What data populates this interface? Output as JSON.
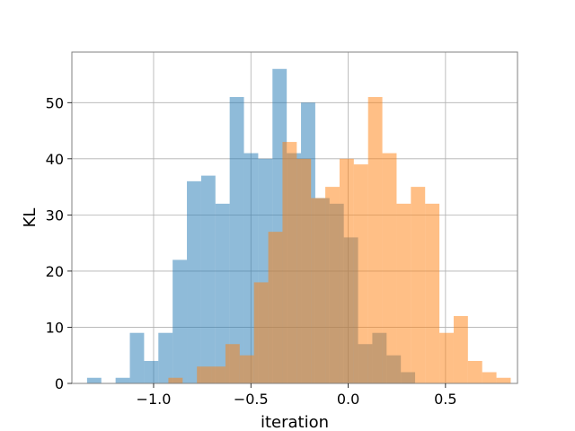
{
  "chart_data": {
    "type": "bar",
    "title": "",
    "xlabel": "iteration",
    "ylabel": "KL",
    "xlim": [
      -1.42,
      0.87
    ],
    "ylim": [
      0,
      59
    ],
    "grid": true,
    "x_ticks": [
      -1.0,
      -0.5,
      0.0,
      0.5
    ],
    "x_tick_labels": [
      "−1.0",
      "−0.5",
      "0.0",
      "0.5"
    ],
    "y_ticks": [
      0,
      10,
      20,
      30,
      40,
      50
    ],
    "y_tick_labels": [
      "0",
      "10",
      "20",
      "30",
      "40",
      "50"
    ],
    "bin_width": 0.0733,
    "series": [
      {
        "color": "#1f77b4",
        "alpha": 0.5,
        "bin_start": -1.342,
        "counts": [
          1,
          0,
          1,
          9,
          4,
          9,
          22,
          36,
          37,
          32,
          51,
          41,
          40,
          56,
          41,
          50,
          33,
          32,
          26,
          7,
          9,
          5,
          2
        ]
      },
      {
        "color": "#ff7f0e",
        "alpha": 0.5,
        "bin_start": -0.924,
        "counts": [
          1,
          0,
          3,
          3,
          7,
          5,
          18,
          27,
          43,
          40,
          33,
          35,
          40,
          39,
          51,
          41,
          32,
          35,
          32,
          9,
          12,
          4,
          2,
          1
        ]
      }
    ]
  }
}
